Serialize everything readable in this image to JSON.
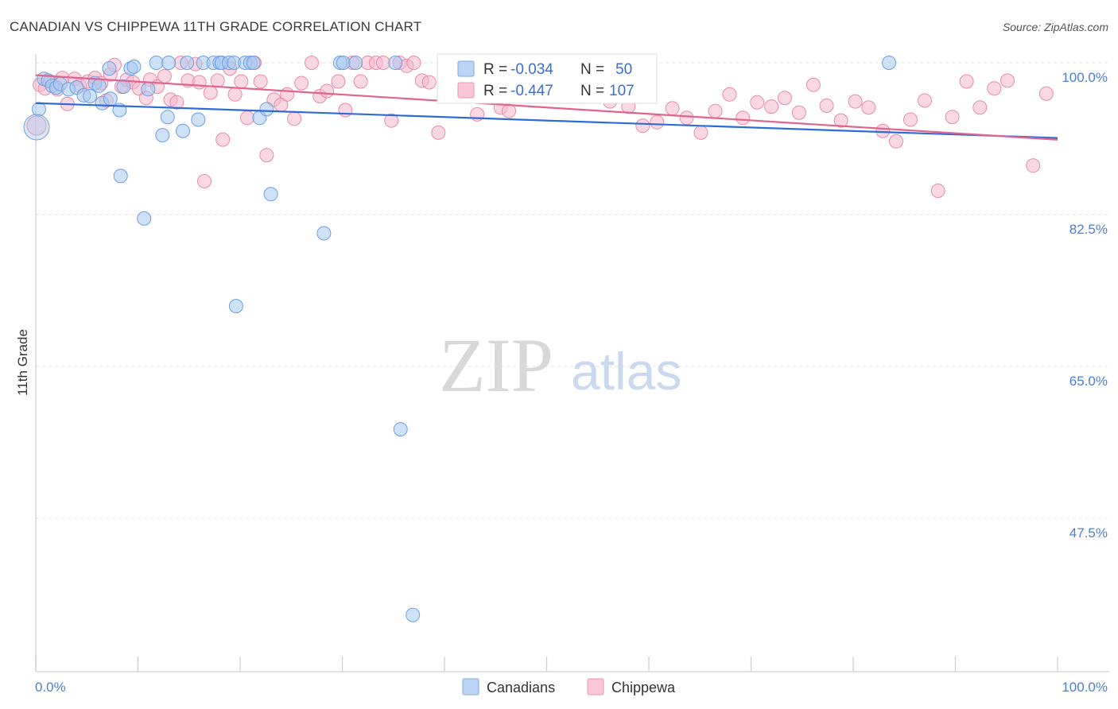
{
  "title": "CANADIAN VS CHIPPEWA 11TH GRADE CORRELATION CHART",
  "source": "Source: ZipAtlas.com",
  "watermark": {
    "part1": "ZIP",
    "part2": "atlas"
  },
  "colors": {
    "blue": "#a8c8f0",
    "blue_stroke": "#6f9fe0",
    "blue_line": "#2d6cd6",
    "pink": "#f5b8cc",
    "pink_stroke": "#e98aaa",
    "pink_line": "#e0648f",
    "tick": "#4a7fd4"
  },
  "legend": {
    "rows": [
      {
        "r_label": "R = ",
        "r_value": "-0.034",
        "n_label": "N = ",
        "n_value": "50"
      },
      {
        "r_label": "R = ",
        "r_value": "-0.447",
        "n_label": "N = ",
        "n_value": "107"
      }
    ]
  },
  "bottom_legend": {
    "series1": "Canadians",
    "series2": "Chippewa"
  },
  "chart_data": {
    "type": "scatter",
    "title": "CANADIAN VS CHIPPEWA 11TH GRADE CORRELATION CHART",
    "xlabel": "",
    "ylabel": "11th Grade",
    "x_tick_labels": [
      "0.0%",
      "100.0%"
    ],
    "y_tick_labels": [
      "100.0%",
      "82.5%",
      "65.0%",
      "47.5%"
    ],
    "y_ticks": [
      100.0,
      82.5,
      65.0,
      47.5
    ],
    "xlim": [
      0,
      100
    ],
    "ylim": [
      34,
      101.5
    ],
    "grid": true,
    "series": [
      {
        "name": "Canadians",
        "r": -0.034,
        "n": 50,
        "trend": {
          "x": [
            0,
            100
          ],
          "y": [
            97.0,
            95.0
          ]
        },
        "points": [
          [
            0.3,
            96.3
          ],
          [
            0.8,
            99.8
          ],
          [
            1.2,
            99.6
          ],
          [
            1.6,
            99.0
          ],
          [
            2.0,
            98.8
          ],
          [
            2.4,
            99.2
          ],
          [
            3.2,
            98.6
          ],
          [
            4.0,
            98.8
          ],
          [
            4.7,
            97.9
          ],
          [
            5.3,
            97.8
          ],
          [
            5.8,
            99.3
          ],
          [
            6.2,
            99.0
          ],
          [
            6.5,
            97.0
          ],
          [
            7.2,
            101.0
          ],
          [
            7.3,
            97.5
          ],
          [
            8.2,
            96.2
          ],
          [
            8.3,
            88.6
          ],
          [
            8.6,
            98.9
          ],
          [
            9.3,
            101.0
          ],
          [
            9.6,
            101.2
          ],
          [
            10.6,
            83.7
          ],
          [
            11.0,
            98.6
          ],
          [
            11.8,
            104.0
          ],
          [
            12.4,
            93.3
          ],
          [
            12.9,
            95.4
          ],
          [
            13.0,
            104.0
          ],
          [
            14.4,
            93.8
          ],
          [
            14.8,
            104.0
          ],
          [
            15.9,
            95.1
          ],
          [
            16.4,
            104.0
          ],
          [
            17.4,
            104.0
          ],
          [
            18.0,
            104.0
          ],
          [
            18.2,
            104.0
          ],
          [
            18.9,
            104.0
          ],
          [
            19.4,
            104.0
          ],
          [
            19.6,
            73.6
          ],
          [
            20.5,
            104.0
          ],
          [
            21.0,
            104.0
          ],
          [
            21.3,
            104.0
          ],
          [
            21.9,
            95.3
          ],
          [
            22.6,
            96.3
          ],
          [
            23.0,
            86.5
          ],
          [
            28.2,
            82.0
          ],
          [
            29.8,
            104.0
          ],
          [
            30.1,
            104.0
          ],
          [
            31.3,
            104.0
          ],
          [
            35.2,
            104.0
          ],
          [
            35.7,
            59.4
          ],
          [
            36.9,
            38.0
          ],
          [
            83.5,
            104.0
          ]
        ]
      },
      {
        "name": "Chippewa",
        "r": -0.447,
        "n": 107,
        "trend": {
          "x": [
            0,
            100
          ],
          "y": [
            99.3,
            93.7
          ]
        },
        "points": [
          [
            0.4,
            99.1
          ],
          [
            0.9,
            98.7
          ],
          [
            1.4,
            99.5
          ],
          [
            2.1,
            98.6
          ],
          [
            2.6,
            99.9
          ],
          [
            3.1,
            96.9
          ],
          [
            3.8,
            99.8
          ],
          [
            4.3,
            99.0
          ],
          [
            5.1,
            99.5
          ],
          [
            5.8,
            99.9
          ],
          [
            6.4,
            99.3
          ],
          [
            6.9,
            97.3
          ],
          [
            7.3,
            100.3
          ],
          [
            7.7,
            101.4
          ],
          [
            8.4,
            98.9
          ],
          [
            8.9,
            99.7
          ],
          [
            9.5,
            99.4
          ],
          [
            10.1,
            98.7
          ],
          [
            10.8,
            97.6
          ],
          [
            11.2,
            99.7
          ],
          [
            11.9,
            98.9
          ],
          [
            12.6,
            100.1
          ],
          [
            13.2,
            97.4
          ],
          [
            13.8,
            97.1
          ],
          [
            14.2,
            102.0
          ],
          [
            14.9,
            99.6
          ],
          [
            15.6,
            101.5
          ],
          [
            16.0,
            99.4
          ],
          [
            16.5,
            88.0
          ],
          [
            17.1,
            98.2
          ],
          [
            17.8,
            99.6
          ],
          [
            18.3,
            92.8
          ],
          [
            19.0,
            101.0
          ],
          [
            19.5,
            98.0
          ],
          [
            20.1,
            99.5
          ],
          [
            20.7,
            95.3
          ],
          [
            21.4,
            102.6
          ],
          [
            22.0,
            99.5
          ],
          [
            22.6,
            91.0
          ],
          [
            23.3,
            97.4
          ],
          [
            24.0,
            96.8
          ],
          [
            24.6,
            98.0
          ],
          [
            25.3,
            95.2
          ],
          [
            26.0,
            99.3
          ],
          [
            27.0,
            104.0
          ],
          [
            27.8,
            97.8
          ],
          [
            28.5,
            98.4
          ],
          [
            29.6,
            99.5
          ],
          [
            30.3,
            96.2
          ],
          [
            31.0,
            104.0
          ],
          [
            31.8,
            99.5
          ],
          [
            32.5,
            102.1
          ],
          [
            33.3,
            104.0
          ],
          [
            34.0,
            103.0
          ],
          [
            34.8,
            95.0
          ],
          [
            35.6,
            102.0
          ],
          [
            36.3,
            101.3
          ],
          [
            37.0,
            103.7
          ],
          [
            37.8,
            99.6
          ],
          [
            38.5,
            99.4
          ],
          [
            39.4,
            93.6
          ],
          [
            40.5,
            101.6
          ],
          [
            41.1,
            98.8
          ],
          [
            42.0,
            98.0
          ],
          [
            43.2,
            95.7
          ],
          [
            44.0,
            97.8
          ],
          [
            45.5,
            96.5
          ],
          [
            46.3,
            96.1
          ],
          [
            47.4,
            101.4
          ],
          [
            48.1,
            100.4
          ],
          [
            49.0,
            100.7
          ],
          [
            50.1,
            98.9
          ],
          [
            52.0,
            98.0
          ],
          [
            53.6,
            99.6
          ],
          [
            55.0,
            101.0
          ],
          [
            56.2,
            97.2
          ],
          [
            57.3,
            98.4
          ],
          [
            58.0,
            96.6
          ],
          [
            59.4,
            94.4
          ],
          [
            60.8,
            94.8
          ],
          [
            62.3,
            96.4
          ],
          [
            63.7,
            95.3
          ],
          [
            65.1,
            93.6
          ],
          [
            66.5,
            96.1
          ],
          [
            67.9,
            98.0
          ],
          [
            69.2,
            95.3
          ],
          [
            70.6,
            97.1
          ],
          [
            72.0,
            96.6
          ],
          [
            73.3,
            97.6
          ],
          [
            74.7,
            95.9
          ],
          [
            76.1,
            99.1
          ],
          [
            77.4,
            96.7
          ],
          [
            78.8,
            95.0
          ],
          [
            80.2,
            97.2
          ],
          [
            81.5,
            96.5
          ],
          [
            82.9,
            93.8
          ],
          [
            84.2,
            92.6
          ],
          [
            85.6,
            95.1
          ],
          [
            87.0,
            97.3
          ],
          [
            88.3,
            86.9
          ],
          [
            89.7,
            95.4
          ],
          [
            91.1,
            99.5
          ],
          [
            92.4,
            96.5
          ],
          [
            93.8,
            98.7
          ],
          [
            95.1,
            99.6
          ],
          [
            97.6,
            89.8
          ],
          [
            98.9,
            98.1
          ]
        ]
      }
    ]
  }
}
